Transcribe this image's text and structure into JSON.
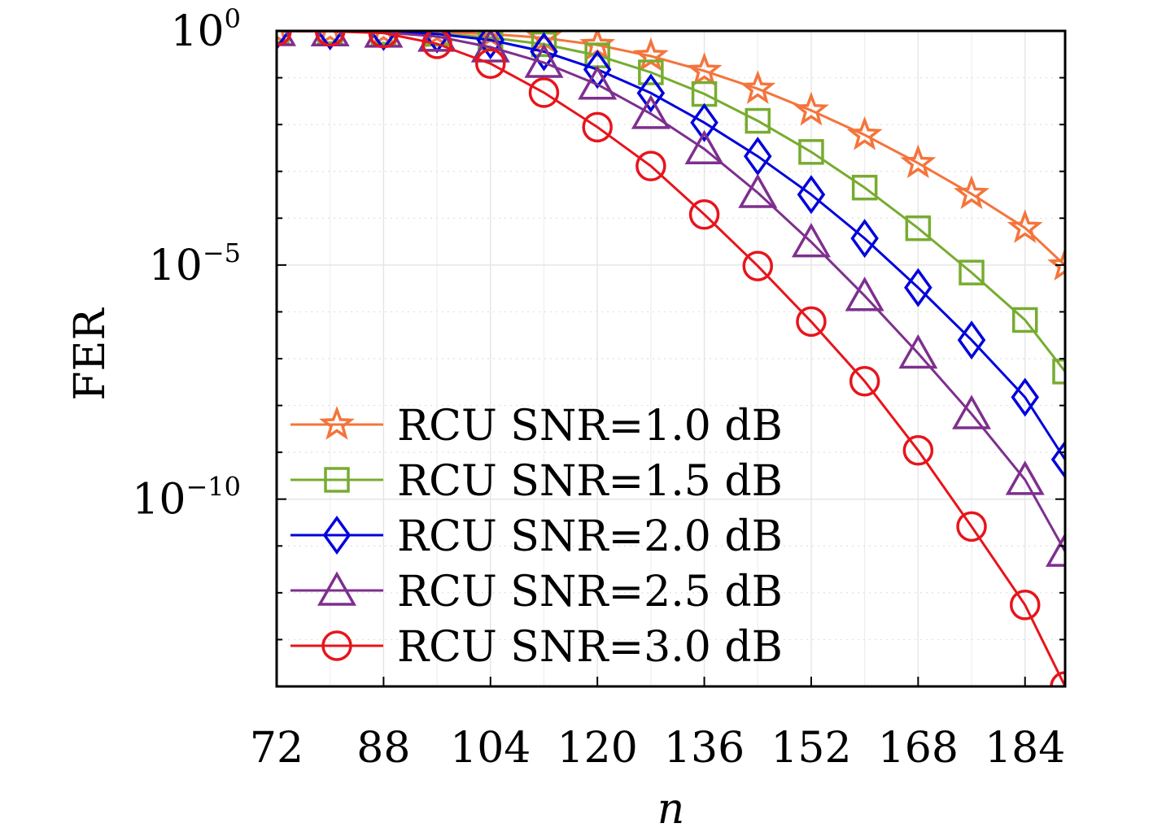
{
  "chart_data": {
    "type": "line",
    "title": "",
    "xlabel": "n",
    "ylabel": "FER",
    "yscale": "log",
    "xlim": [
      72,
      190
    ],
    "ylim": [
      1e-14,
      1
    ],
    "x_ticks": [
      72,
      88,
      104,
      120,
      136,
      152,
      168,
      184
    ],
    "y_ticks": [
      {
        "value": 1,
        "base": "10",
        "exp": "0"
      },
      {
        "value": 1e-05,
        "base": "10",
        "exp": "−5"
      },
      {
        "value": 1e-10,
        "base": "10",
        "exp": "−10"
      }
    ],
    "grid": true,
    "legend_position": "bottom-left",
    "x": [
      72,
      80,
      88,
      96,
      104,
      112,
      120,
      128,
      136,
      144,
      152,
      160,
      168,
      176,
      184,
      192
    ],
    "series": [
      {
        "name": "RCU SNR=1.0 dB",
        "color": "#F4743B",
        "marker": "star",
        "values": [
          1.0,
          0.99,
          0.97,
          0.93,
          0.86,
          0.71,
          0.5,
          0.29,
          0.14,
          0.058,
          0.02,
          0.006,
          0.0015,
          0.00033,
          6.2e-05,
          9.8e-06
        ]
      },
      {
        "name": "RCU SNR=1.5 dB",
        "color": "#77AC30",
        "marker": "square",
        "values": [
          1.0,
          0.98,
          0.95,
          0.87,
          0.72,
          0.52,
          0.3,
          0.13,
          0.045,
          0.012,
          0.0026,
          0.00045,
          6.1e-05,
          6.9e-06,
          6.7e-07,
          5.3e-08
        ]
      },
      {
        "name": "RCU SNR=2.0 dB",
        "color": "#0000DD",
        "marker": "diamond",
        "values": [
          1.0,
          1.0,
          0.97,
          0.86,
          0.64,
          0.36,
          0.15,
          0.047,
          0.011,
          0.0021,
          0.00032,
          3.7e-05,
          3.3e-06,
          2.5e-07,
          1.5e-08,
          7e-10
        ]
      },
      {
        "name": "RCU SNR=2.5 dB",
        "color": "#7E2F8E",
        "marker": "triangle",
        "values": [
          1.0,
          0.99,
          0.93,
          0.76,
          0.45,
          0.21,
          0.072,
          0.017,
          0.003,
          0.00035,
          3.1e-05,
          2.2e-06,
          1.3e-07,
          6.6e-09,
          2.6e-10,
          7.6e-12
        ]
      },
      {
        "name": "RCU SNR=3.0 dB",
        "color": "#E8141B",
        "marker": "circle",
        "values": [
          1.0,
          0.98,
          0.9,
          0.53,
          0.2,
          0.048,
          0.0088,
          0.0013,
          0.00012,
          9.5e-06,
          6.2e-07,
          3.3e-08,
          1.1e-09,
          2.6e-11,
          5.5e-13,
          1e-14
        ]
      }
    ]
  }
}
